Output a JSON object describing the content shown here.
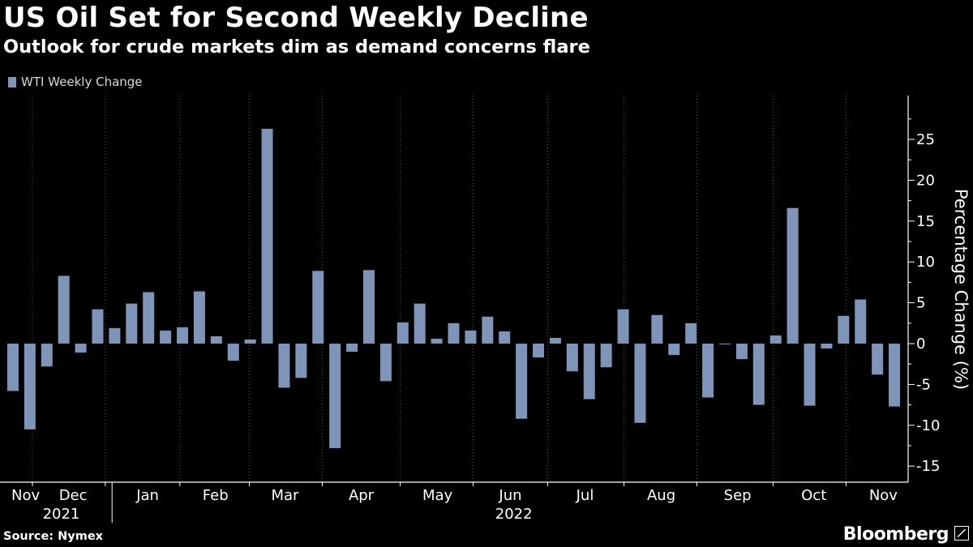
{
  "header": {
    "title": "US Oil Set for Second Weekly Decline",
    "subtitle": "Outlook for crude markets dim as demand concerns flare"
  },
  "footer": {
    "source": "Source: Nymex",
    "brand": "Bloomberg"
  },
  "colors": {
    "background": "#000000",
    "bar": "#7e94b8",
    "grid": "#555555",
    "text": "#ffffff"
  },
  "chart_data": {
    "type": "bar",
    "title": "US Oil Set for Second Weekly Decline",
    "subtitle": "Outlook for crude markets dim as demand concerns flare",
    "ylabel": "Percentage Change (%)",
    "xlabel": "",
    "ylim": [
      -17,
      30
    ],
    "yticks": [
      25,
      20,
      15,
      10,
      5,
      0,
      -5,
      -10,
      -15
    ],
    "y_axis_side": "right",
    "grid": "vertical dotted lines at month boundaries",
    "legend": {
      "position": "top-left",
      "entries": [
        "WTI Weekly Change"
      ]
    },
    "series": [
      {
        "name": "WTI Weekly Change",
        "values": [
          -5.8,
          -10.5,
          -2.8,
          8.3,
          -1.1,
          4.2,
          1.9,
          4.9,
          6.3,
          1.6,
          2.0,
          6.4,
          0.9,
          -2.1,
          0.5,
          26.3,
          -5.4,
          -4.2,
          8.9,
          -12.8,
          -1.0,
          9.0,
          -4.6,
          2.6,
          4.9,
          0.6,
          2.5,
          1.6,
          3.3,
          1.5,
          -9.2,
          -1.7,
          0.7,
          -3.4,
          -6.8,
          -2.9,
          4.2,
          -9.7,
          3.5,
          -1.4,
          2.5,
          -6.6,
          -0.1,
          -1.9,
          -7.5,
          1.0,
          16.6,
          -7.6,
          -0.6,
          3.4,
          5.4,
          -3.8,
          -7.7
        ]
      }
    ],
    "months": [
      {
        "label": "Nov",
        "center_week": 1.2
      },
      {
        "label": "Dec",
        "center_week": 4.0
      },
      {
        "label": "Jan",
        "center_week": 8.4
      },
      {
        "label": "Feb",
        "center_week": 12.4
      },
      {
        "label": "Mar",
        "center_week": 16.5
      },
      {
        "label": "Apr",
        "center_week": 21.0
      },
      {
        "label": "May",
        "center_week": 25.5
      },
      {
        "label": "Jun",
        "center_week": 29.8
      },
      {
        "label": "Jul",
        "center_week": 34.2
      },
      {
        "label": "Aug",
        "center_week": 38.7
      },
      {
        "label": "Sep",
        "center_week": 43.2
      },
      {
        "label": "Oct",
        "center_week": 47.7
      },
      {
        "label": "Nov",
        "center_week": 51.8
      }
    ],
    "month_boundaries": [
      1.6,
      5.9,
      10.3,
      14.4,
      18.7,
      23.3,
      27.6,
      32.0,
      36.5,
      40.8,
      45.3,
      49.6
    ],
    "years": [
      {
        "label": "2021",
        "center_week": 3.3
      },
      {
        "label": "2022",
        "center_week": 30.0
      }
    ],
    "year_boundary": 6.3
  }
}
